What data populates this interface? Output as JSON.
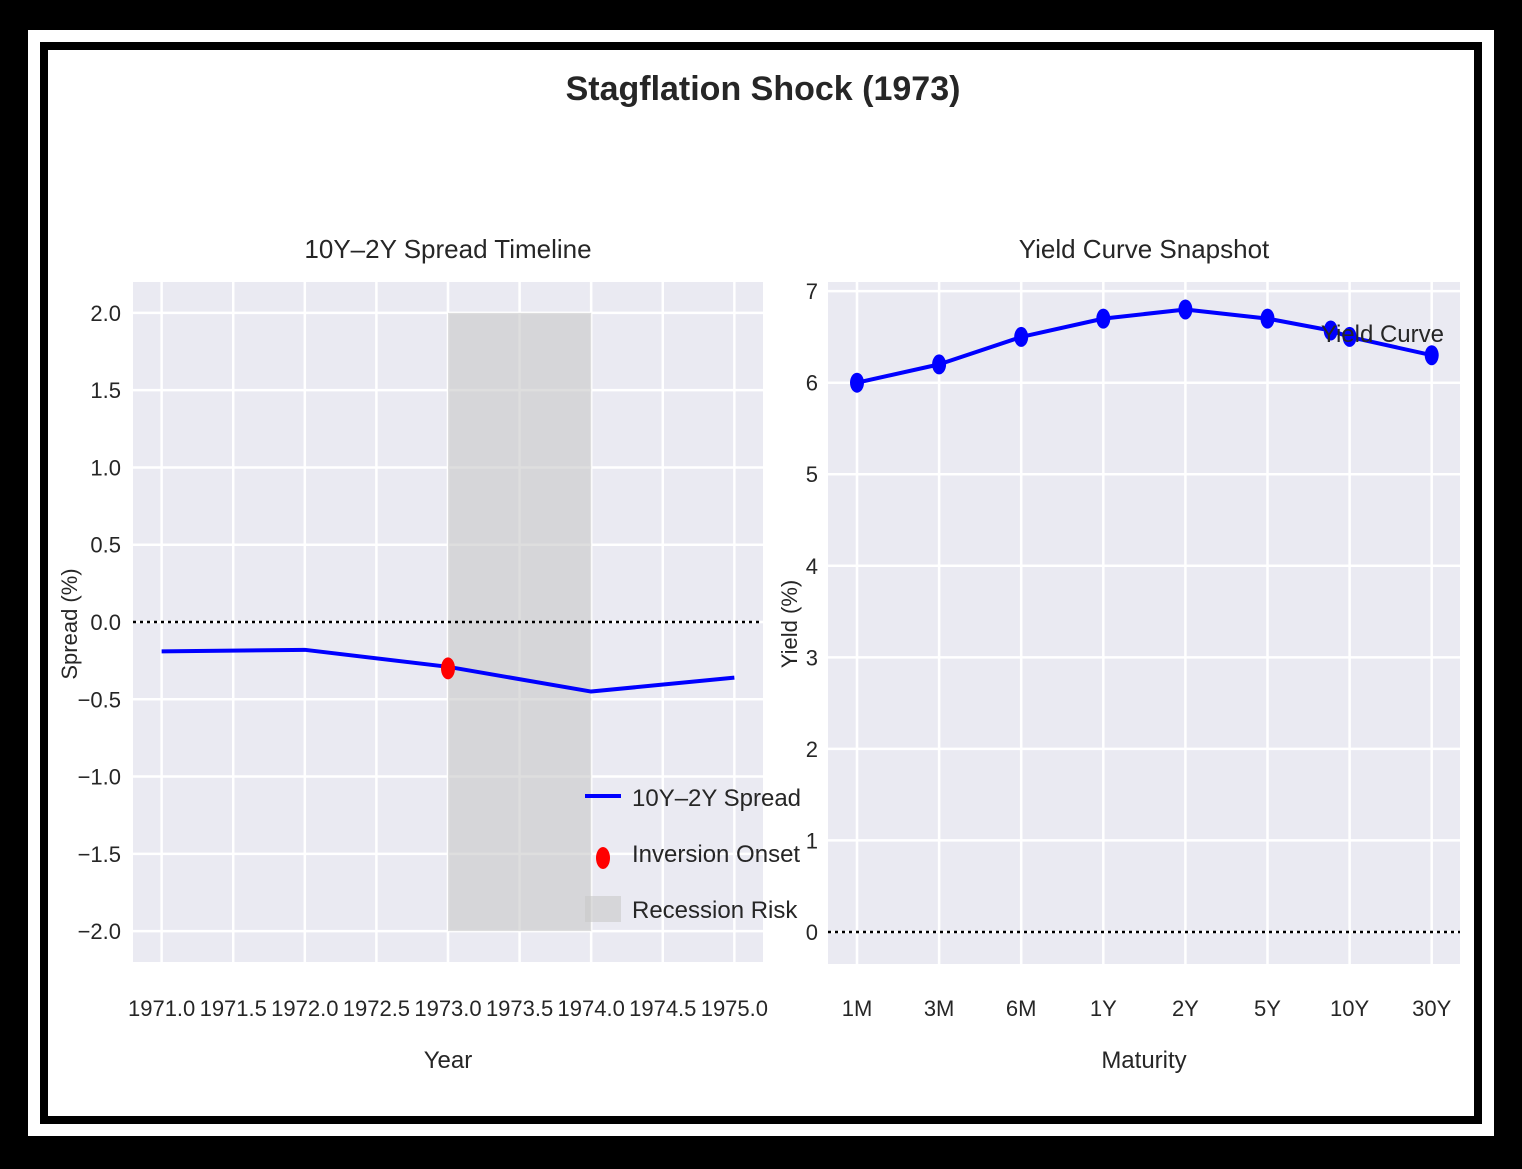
{
  "figure": {
    "title": "Stagflation Shock (1973)"
  },
  "colors": {
    "frame_outer": "#000000",
    "frame_inner_border": "#ffffff",
    "paper": "#ffffff",
    "plot_bg": "#eaeaf2",
    "grid": "#ffffff",
    "series_line": "#0000ff",
    "marker_highlight": "#ff0000",
    "shade": "#c8c8c8",
    "text": "#262626",
    "zero_line": "#000000"
  },
  "chart_data": [
    {
      "type": "line",
      "title": "10Y–2Y Spread Timeline",
      "xlabel": "Year",
      "ylabel": "Spread (%)",
      "xlim": [
        1970.8,
        1975.2
      ],
      "ylim": [
        -2.2,
        2.2
      ],
      "xticks": [
        1971.0,
        1971.5,
        1972.0,
        1972.5,
        1973.0,
        1973.5,
        1974.0,
        1974.5,
        1975.0
      ],
      "xtick_labels": [
        "1971.0",
        "1971.5",
        "1972.0",
        "1972.5",
        "1973.0",
        "1973.5",
        "1974.0",
        "1974.5",
        "1975.0"
      ],
      "yticks": [
        2.0,
        1.5,
        1.0,
        0.5,
        0.0,
        -0.5,
        -1.0,
        -1.5,
        -2.0
      ],
      "ytick_labels": [
        "2.0",
        "1.5",
        "1.0",
        "0.5",
        "0.0",
        "−0.5",
        "−1.0",
        "−1.5",
        "−2.0"
      ],
      "grid": true,
      "series": [
        {
          "name": "10Y–2Y Spread",
          "x": [
            1971,
            1972,
            1973,
            1974,
            1975
          ],
          "y": [
            -0.19,
            -0.18,
            -0.29,
            -0.45,
            -0.36
          ]
        }
      ],
      "highlight_point": {
        "name": "Inversion Onset",
        "x": 1973,
        "y": -0.3
      },
      "shaded_region": {
        "name": "Recession Risk",
        "x": [
          1973.0,
          1974.0
        ],
        "y": [
          -2.0,
          2.0
        ]
      },
      "reference_line": {
        "y": 0,
        "style": "dotted"
      },
      "legend": {
        "placement": "lower-right",
        "entries": [
          "10Y–2Y Spread",
          "Inversion Onset",
          "Recession Risk"
        ]
      }
    },
    {
      "type": "line",
      "title": "Yield Curve Snapshot",
      "xlabel": "Maturity",
      "ylabel": "Yield (%)",
      "ylim": [
        -0.35,
        7.1
      ],
      "yticks": [
        7,
        6,
        5,
        4,
        3,
        2,
        1,
        0
      ],
      "ytick_labels": [
        "7",
        "6",
        "5",
        "4",
        "3",
        "2",
        "1",
        "0"
      ],
      "categories": [
        "1M",
        "3M",
        "6M",
        "1Y",
        "2Y",
        "5Y",
        "10Y",
        "30Y"
      ],
      "grid": true,
      "series": [
        {
          "name": "Yield Curve",
          "x": [
            0,
            1,
            2,
            3,
            4,
            5,
            5.77,
            6,
            7
          ],
          "y": [
            6.0,
            6.2,
            6.5,
            6.7,
            6.8,
            6.7,
            6.57,
            6.5,
            6.3
          ]
        }
      ],
      "reference_line": {
        "y": 0,
        "style": "dotted"
      },
      "annotation": {
        "text": "Yield Curve",
        "placement": "upper-right"
      }
    }
  ]
}
